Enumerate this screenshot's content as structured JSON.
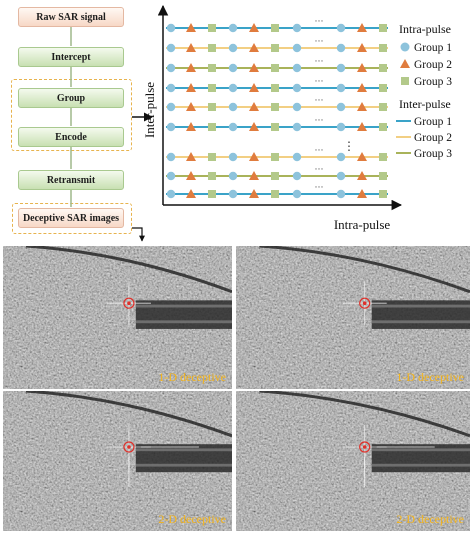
{
  "flow": {
    "steps": [
      "Raw SAR signal",
      "Intercept",
      "Group",
      "Encode",
      "Retransmit",
      "Deceptive SAR images"
    ]
  },
  "diagram": {
    "y_axis_label": "Inter-pulse",
    "x_axis_label": "Intra-pulse",
    "ellipsis": "···",
    "vdots": "⋮",
    "legend": {
      "intra_title": "Intra-pulse",
      "inter_title": "Inter-pulse",
      "intra_items": [
        {
          "label": "Group 1",
          "marker": "circle",
          "color": "#8dc3dc"
        },
        {
          "label": "Group 2",
          "marker": "triangle",
          "color": "#e07c3e"
        },
        {
          "label": "Group 3",
          "marker": "square",
          "color": "#b3c98a"
        }
      ],
      "inter_items": [
        {
          "label": "Group 1",
          "color": "#3aa3c8"
        },
        {
          "label": "Group 2",
          "color": "#f2cf83"
        },
        {
          "label": "Group 3",
          "color": "#a9b35a"
        }
      ]
    },
    "row_groups": [
      1,
      2,
      3,
      1,
      2,
      1,
      2,
      3,
      1
    ]
  },
  "images": {
    "captions": [
      "1-D deceptive",
      "1-D deceptive",
      "2-D deceptive",
      "2-D deceptive"
    ],
    "target_color": "#e0302a",
    "caption_color": "#f4b41a"
  }
}
